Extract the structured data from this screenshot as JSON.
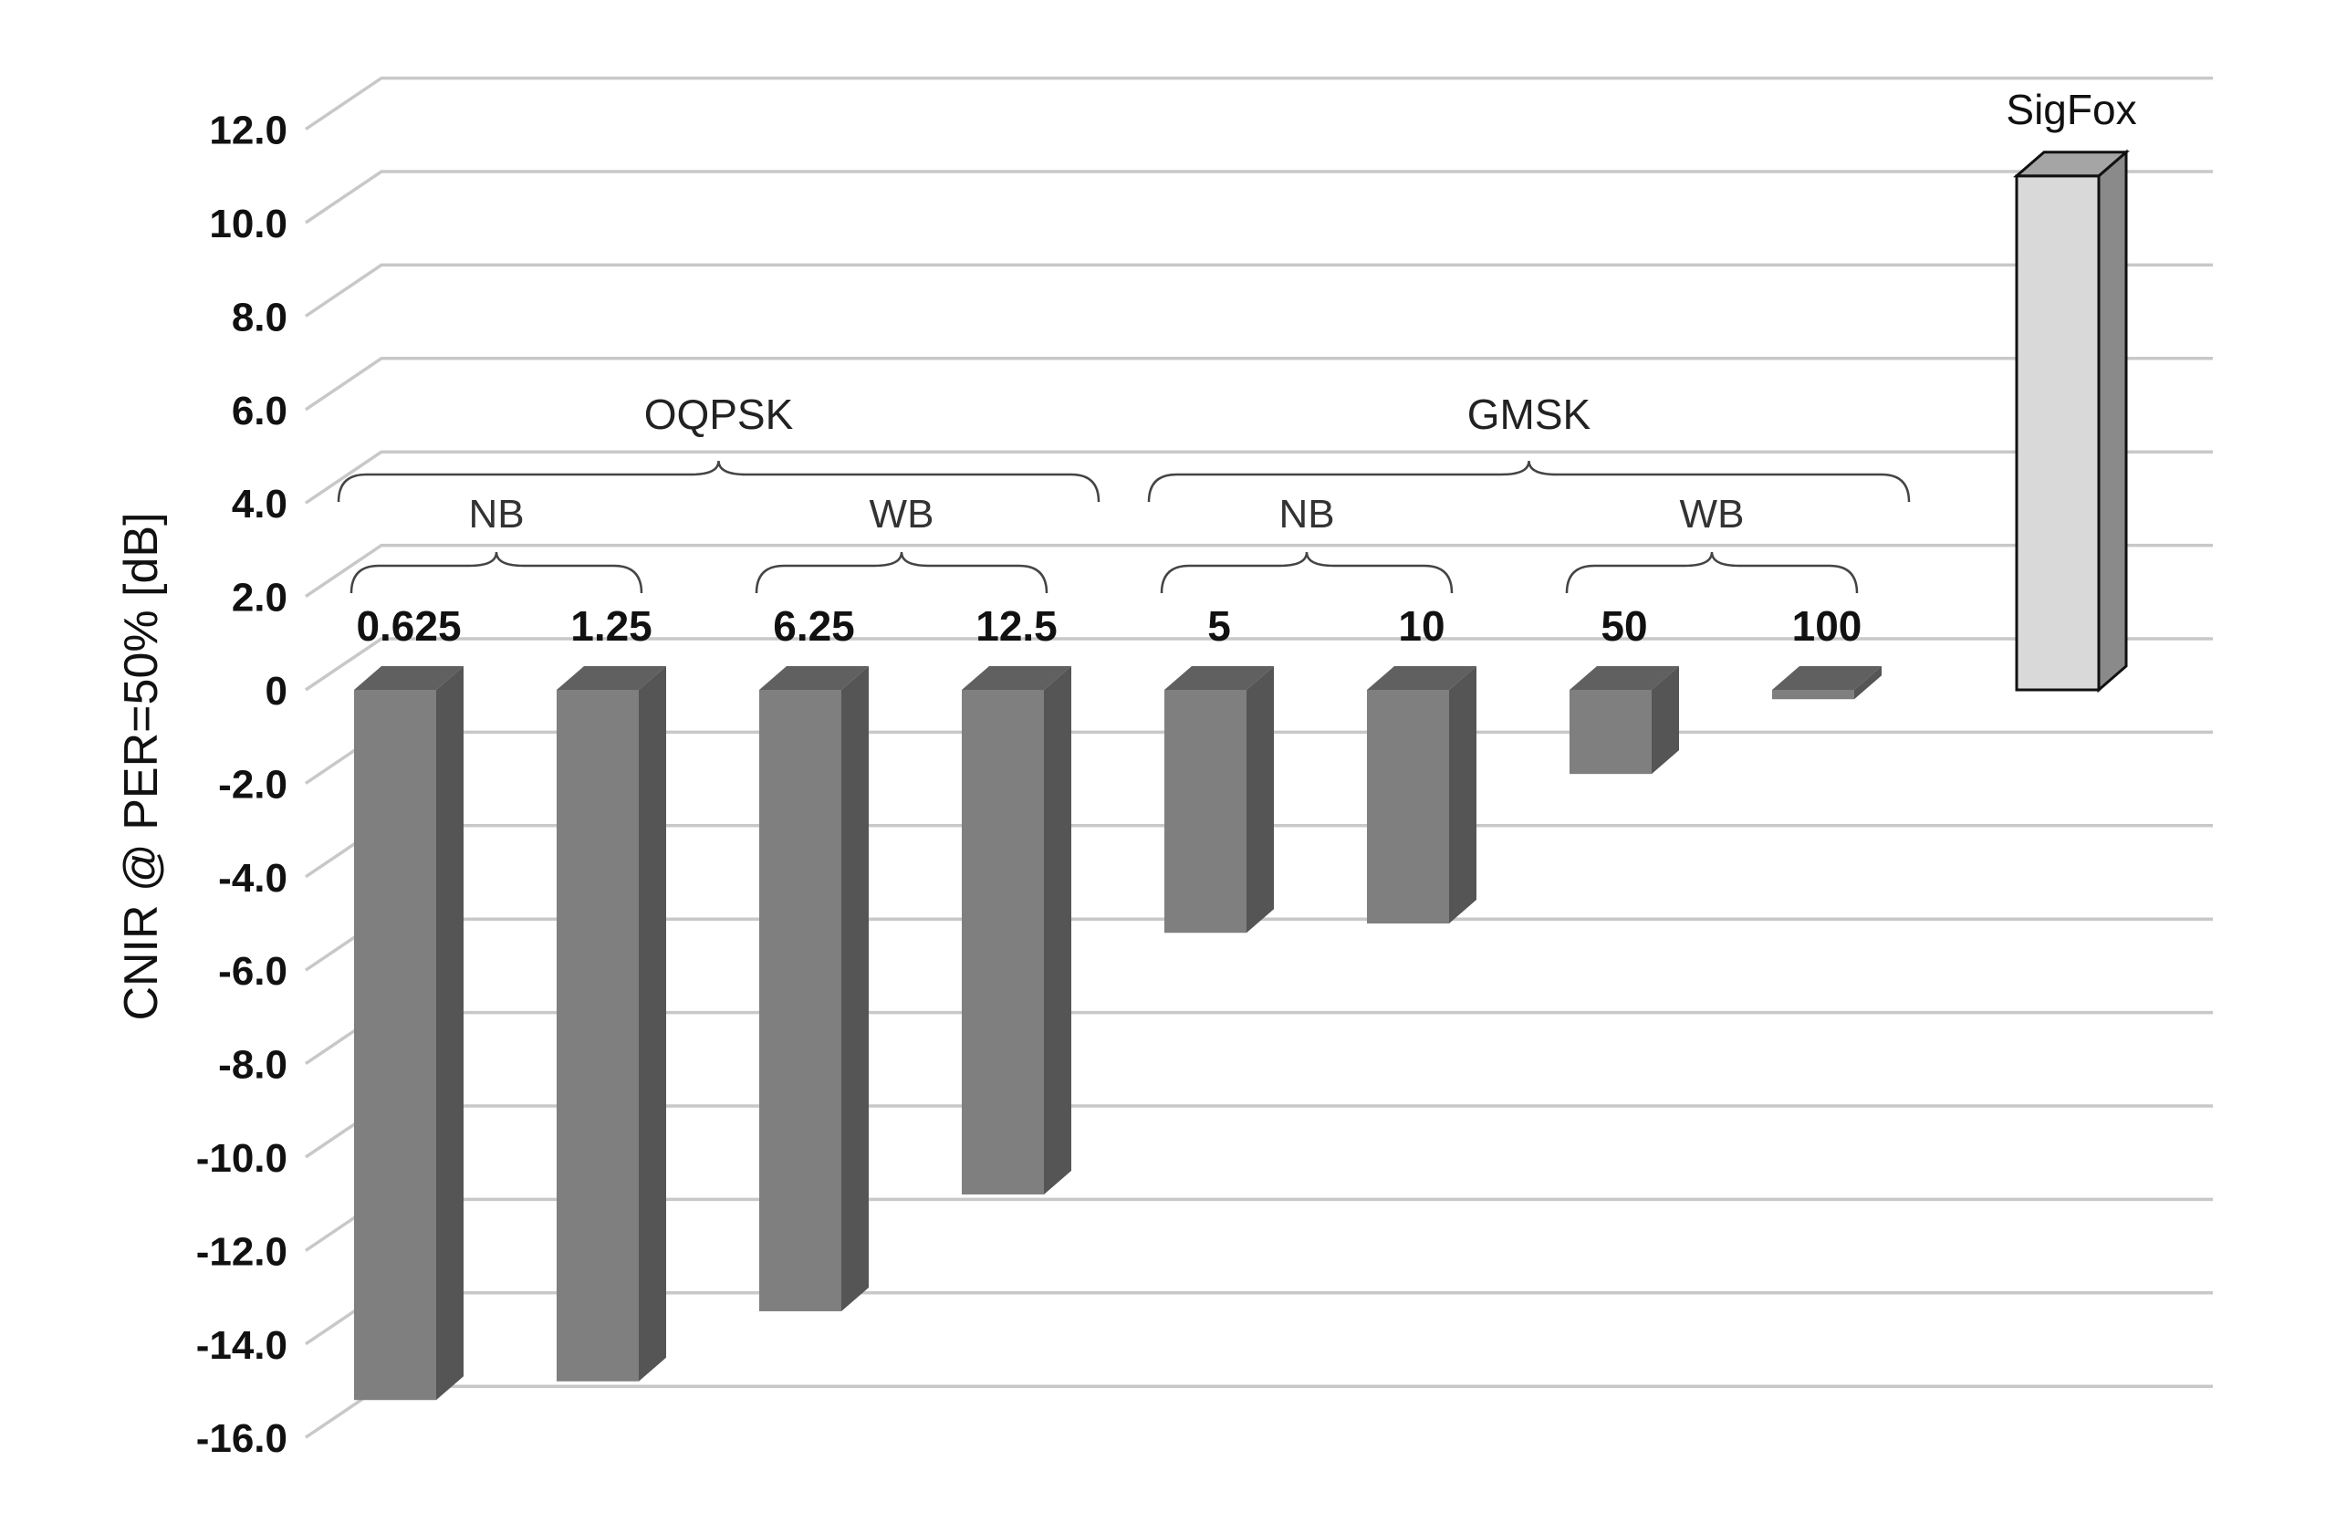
{
  "chart_data": {
    "type": "bar",
    "ylabel": "CNIR @ PER=50%  [dB]",
    "ylim": [
      -16,
      12
    ],
    "yticks": [
      "12.0",
      "10.0",
      "8.0",
      "6.0",
      "4.0",
      "2.0",
      "0",
      "-2.0",
      "-4.0",
      "-6.0",
      "-8.0",
      "-10.0",
      "-12.0",
      "-14.0",
      "-16.0"
    ],
    "categories": [
      "0.625",
      "1.25",
      "6.25",
      "12.5",
      "5",
      "10",
      "50",
      "100",
      "SigFox"
    ],
    "values": [
      -15.2,
      -14.8,
      -13.3,
      -10.8,
      -5.2,
      -5.0,
      -1.8,
      -0.2,
      11.0
    ],
    "bar_colors": [
      "#7f7f7f",
      "#7f7f7f",
      "#7f7f7f",
      "#7f7f7f",
      "#7f7f7f",
      "#7f7f7f",
      "#7f7f7f",
      "#7f7f7f",
      "#d9d9d9"
    ],
    "groups": [
      {
        "label": "OQPSK",
        "subgroups": [
          {
            "label": "NB",
            "members": [
              "0.625",
              "1.25"
            ]
          },
          {
            "label": "WB",
            "members": [
              "6.25",
              "12.5"
            ]
          }
        ]
      },
      {
        "label": "GMSK",
        "subgroups": [
          {
            "label": "NB",
            "members": [
              "5",
              "10"
            ]
          },
          {
            "label": "WB",
            "members": [
              "50",
              "100"
            ]
          }
        ]
      }
    ],
    "grid": true,
    "style": "3d-column"
  }
}
